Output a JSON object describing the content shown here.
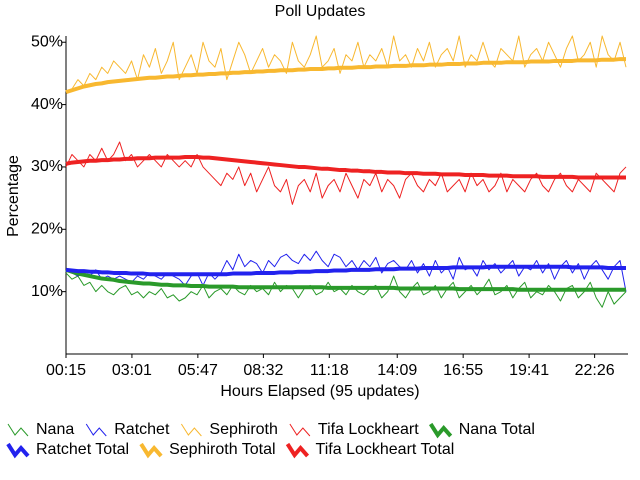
{
  "chart_data": {
    "type": "line",
    "title": "Poll Updates",
    "xlabel": "Hours Elapsed (95 updates)",
    "ylabel": "Percentage",
    "x": [
      "00:15",
      "00:30",
      "00:45",
      "01:00",
      "01:15",
      "01:30",
      "01:45",
      "02:00",
      "02:15",
      "02:30",
      "02:45",
      "03:00",
      "03:15",
      "03:30",
      "03:45",
      "04:00",
      "04:15",
      "04:30",
      "04:45",
      "05:00",
      "05:15",
      "05:30",
      "05:45",
      "06:00",
      "06:15",
      "06:30",
      "06:45",
      "07:00",
      "07:15",
      "07:30",
      "07:45",
      "08:00",
      "08:15",
      "08:30",
      "08:45",
      "09:00",
      "09:15",
      "09:30",
      "09:45",
      "10:00",
      "10:15",
      "10:30",
      "10:45",
      "11:00",
      "11:15",
      "11:30",
      "11:45",
      "12:00",
      "12:15",
      "12:30",
      "12:45",
      "13:00",
      "13:15",
      "13:30",
      "13:45",
      "14:00",
      "14:15",
      "14:30",
      "14:45",
      "15:00",
      "15:15",
      "15:30",
      "15:45",
      "16:00",
      "16:15",
      "16:30",
      "16:45",
      "17:00",
      "17:15",
      "17:30",
      "17:45",
      "18:00",
      "18:15",
      "18:30",
      "18:45",
      "19:00",
      "19:15",
      "19:30",
      "19:45",
      "20:00",
      "20:15",
      "20:30",
      "20:45",
      "21:00",
      "21:15",
      "21:30",
      "21:45",
      "22:00",
      "22:15",
      "22:30",
      "22:45",
      "23:00",
      "23:15",
      "23:30",
      "23:45"
    ],
    "xlim": [
      "00:15",
      "23:45"
    ],
    "xticks": [
      "00:15",
      "03:01",
      "05:47",
      "08:32",
      "11:18",
      "14:09",
      "16:55",
      "19:41",
      "22:26"
    ],
    "ylim": [
      0,
      51
    ],
    "yticks": [
      {
        "value": 10,
        "label": "10%"
      },
      {
        "value": 20,
        "label": "20%"
      },
      {
        "value": 30,
        "label": "30%"
      },
      {
        "value": 40,
        "label": "40%"
      },
      {
        "value": 50,
        "label": "50%"
      }
    ],
    "series": [
      {
        "name": "Nana",
        "color": "#2a9a2a",
        "linewidth": 1,
        "values": [
          13,
          12,
          12.5,
          11,
          11.5,
          10,
          11,
          10,
          9.5,
          10.5,
          11,
          9.5,
          10,
          9,
          10,
          9.5,
          10.5,
          9,
          9.5,
          8.5,
          9,
          10,
          9.5,
          11,
          9,
          10,
          10.5,
          9.5,
          11,
          10,
          9.5,
          11,
          10,
          10.5,
          9.5,
          11.5,
          10,
          11,
          10.5,
          9,
          10.5,
          11,
          9.5,
          10,
          11.5,
          10,
          10.5,
          9.5,
          11,
          10,
          9.5,
          10.5,
          11,
          9,
          10,
          12.5,
          10,
          9,
          10.5,
          11.5,
          9.5,
          10,
          11,
          9,
          10.5,
          11.5,
          9,
          10,
          11,
          9.5,
          10.5,
          12,
          9.5,
          10,
          11,
          9,
          10.5,
          11.5,
          9,
          10,
          9.5,
          11,
          10,
          8.5,
          10.5,
          11,
          9,
          10,
          11.5,
          9,
          7.5,
          10,
          8,
          9,
          10
        ]
      },
      {
        "name": "Ratchet",
        "color": "#2222ee",
        "linewidth": 1,
        "values": [
          13.5,
          13,
          12.5,
          13,
          12.5,
          13.5,
          12,
          12.5,
          12,
          12.5,
          12,
          11.5,
          12.5,
          12,
          13,
          12.5,
          12,
          13,
          12.5,
          12,
          11,
          12.5,
          13,
          11,
          13,
          12,
          13,
          15,
          13.5,
          16,
          14,
          15,
          14.5,
          13,
          15,
          14,
          15.5,
          16,
          15,
          14.5,
          16,
          15,
          16.5,
          15,
          14,
          16,
          15.5,
          14,
          15,
          13.5,
          15,
          14,
          15.5,
          13,
          14.5,
          15,
          14,
          13.5,
          15,
          13,
          14.5,
          12.5,
          15,
          13,
          14,
          12,
          15.5,
          13.5,
          14,
          12.5,
          15,
          13.5,
          14.5,
          13,
          14,
          15,
          12.5,
          14,
          13.5,
          15,
          13,
          14.5,
          12,
          14,
          15,
          13,
          14.5,
          12,
          14,
          15,
          13.5,
          12,
          14,
          15,
          10
        ]
      },
      {
        "name": "Sephiroth",
        "color": "#f8b830",
        "linewidth": 1,
        "values": [
          42,
          42.5,
          44,
          43,
          45,
          44,
          46,
          45,
          47,
          46,
          45,
          47,
          44,
          48,
          46,
          49,
          45,
          47,
          50,
          44,
          46,
          48,
          45,
          50,
          47,
          46,
          49,
          44,
          47,
          50,
          48,
          45,
          47,
          49,
          46,
          48,
          47,
          45,
          50,
          47,
          46,
          48,
          51,
          46,
          47,
          49,
          45,
          48,
          47,
          50,
          46,
          48,
          47,
          49,
          46,
          51,
          47,
          48,
          46,
          49,
          47,
          50,
          46,
          48,
          49,
          47,
          51,
          46,
          48,
          47,
          50,
          47,
          46,
          49,
          48,
          47,
          51,
          46,
          48,
          49,
          47,
          50,
          48,
          46,
          49,
          51,
          47,
          48,
          50,
          46,
          51,
          48,
          47,
          50,
          46
        ]
      },
      {
        "name": "Tifa Lockheart",
        "color": "#ee2222",
        "linewidth": 1,
        "values": [
          30,
          32,
          31,
          30,
          32,
          31,
          33,
          31,
          32,
          34,
          31,
          32,
          30,
          31,
          32,
          31,
          30,
          32,
          31,
          30,
          31,
          30,
          32,
          30,
          29,
          28,
          27,
          29,
          28,
          30,
          27,
          29,
          26,
          28,
          30,
          27,
          26,
          28,
          24,
          27,
          28,
          26,
          29,
          25,
          27,
          28,
          26,
          29,
          27,
          25,
          28,
          27,
          29,
          26,
          28,
          27,
          25,
          28,
          29,
          27,
          26,
          28,
          27,
          29,
          26,
          27,
          28,
          26,
          29,
          27,
          28,
          26,
          27,
          29,
          26,
          28,
          27,
          26,
          28,
          29,
          27,
          26,
          28,
          29,
          27,
          26,
          28,
          27,
          26,
          29,
          28,
          27,
          26,
          29,
          30
        ]
      },
      {
        "name": "Nana Total",
        "color": "#2a9a2a",
        "linewidth": 4,
        "values": [
          13.5,
          13.2,
          12.9,
          12.7,
          12.5,
          12.3,
          12.1,
          12,
          11.9,
          11.7,
          11.6,
          11.5,
          11.4,
          11.3,
          11.3,
          11.2,
          11.1,
          11.1,
          11,
          11,
          11,
          10.9,
          10.9,
          10.9,
          10.8,
          10.8,
          10.8,
          10.8,
          10.8,
          10.7,
          10.7,
          10.7,
          10.7,
          10.7,
          10.7,
          10.7,
          10.7,
          10.7,
          10.7,
          10.7,
          10.7,
          10.7,
          10.7,
          10.7,
          10.6,
          10.6,
          10.6,
          10.6,
          10.6,
          10.6,
          10.6,
          10.6,
          10.6,
          10.6,
          10.6,
          10.6,
          10.5,
          10.5,
          10.5,
          10.5,
          10.5,
          10.5,
          10.5,
          10.5,
          10.5,
          10.5,
          10.4,
          10.4,
          10.4,
          10.4,
          10.4,
          10.4,
          10.4,
          10.4,
          10.4,
          10.4,
          10.3,
          10.3,
          10.3,
          10.3,
          10.3,
          10.3,
          10.3,
          10.3,
          10.3,
          10.3,
          10.3,
          10.3,
          10.3,
          10.3,
          10.3,
          10.3,
          10.3,
          10.3,
          10.3
        ]
      },
      {
        "name": "Ratchet Total",
        "color": "#2222ee",
        "linewidth": 4,
        "values": [
          13.5,
          13.4,
          13.3,
          13.3,
          13.2,
          13.2,
          13.1,
          13.1,
          13,
          13,
          13,
          12.9,
          12.9,
          12.9,
          12.8,
          12.8,
          12.8,
          12.8,
          12.8,
          12.8,
          12.8,
          12.8,
          12.8,
          12.8,
          12.8,
          12.8,
          12.8,
          12.8,
          12.9,
          12.9,
          12.9,
          12.9,
          13,
          13,
          13,
          13,
          13.1,
          13.1,
          13.1,
          13.2,
          13.2,
          13.2,
          13.3,
          13.3,
          13.3,
          13.4,
          13.4,
          13.4,
          13.5,
          13.5,
          13.5,
          13.5,
          13.6,
          13.6,
          13.6,
          13.6,
          13.7,
          13.7,
          13.7,
          13.7,
          13.8,
          13.8,
          13.8,
          13.8,
          13.8,
          13.9,
          13.9,
          13.9,
          13.9,
          13.9,
          13.9,
          14,
          14,
          14,
          14,
          14,
          14,
          14,
          14,
          14,
          14,
          14,
          14,
          14,
          14,
          13.9,
          13.9,
          13.9,
          13.9,
          13.9,
          13.9,
          13.8,
          13.8,
          13.8,
          13.8
        ]
      },
      {
        "name": "Sephiroth Total",
        "color": "#f8b830",
        "linewidth": 4,
        "values": [
          42,
          42.3,
          42.6,
          42.9,
          43.1,
          43.3,
          43.4,
          43.6,
          43.7,
          43.8,
          43.9,
          44,
          44.1,
          44.2,
          44.3,
          44.3,
          44.4,
          44.5,
          44.5,
          44.6,
          44.7,
          44.7,
          44.8,
          44.8,
          44.9,
          44.9,
          45,
          45,
          45.1,
          45.1,
          45.2,
          45.2,
          45.3,
          45.3,
          45.4,
          45.4,
          45.5,
          45.5,
          45.5,
          45.6,
          45.6,
          45.7,
          45.7,
          45.7,
          45.8,
          45.8,
          45.9,
          45.9,
          45.9,
          46,
          46,
          46,
          46.1,
          46.1,
          46.1,
          46.2,
          46.2,
          46.2,
          46.3,
          46.3,
          46.3,
          46.4,
          46.4,
          46.4,
          46.5,
          46.5,
          46.5,
          46.6,
          46.6,
          46.6,
          46.7,
          46.7,
          46.7,
          46.7,
          46.8,
          46.8,
          46.8,
          46.8,
          46.9,
          46.9,
          46.9,
          46.9,
          47,
          47,
          47,
          47,
          47.1,
          47.1,
          47.1,
          47.1,
          47.2,
          47.2,
          47.2,
          47.3,
          47.3
        ]
      },
      {
        "name": "Tifa Lockheart Total",
        "color": "#ee2222",
        "linewidth": 4,
        "values": [
          30.5,
          30.7,
          30.8,
          30.9,
          31,
          31,
          31.1,
          31.1,
          31.2,
          31.2,
          31.3,
          31.3,
          31.4,
          31.4,
          31.4,
          31.5,
          31.5,
          31.5,
          31.5,
          31.5,
          31.6,
          31.6,
          31.6,
          31.5,
          31.5,
          31.4,
          31.3,
          31.2,
          31.1,
          31,
          30.9,
          30.8,
          30.7,
          30.6,
          30.5,
          30.4,
          30.3,
          30.2,
          30.1,
          30,
          30,
          29.9,
          29.8,
          29.7,
          29.7,
          29.6,
          29.5,
          29.5,
          29.4,
          29.4,
          29.3,
          29.3,
          29.2,
          29.2,
          29.1,
          29.1,
          29.1,
          29,
          29,
          29,
          28.9,
          28.9,
          28.9,
          28.8,
          28.8,
          28.8,
          28.8,
          28.7,
          28.7,
          28.7,
          28.7,
          28.6,
          28.6,
          28.6,
          28.6,
          28.5,
          28.5,
          28.5,
          28.5,
          28.5,
          28.4,
          28.4,
          28.4,
          28.4,
          28.4,
          28.4,
          28.3,
          28.3,
          28.3,
          28.3,
          28.3,
          28.3,
          28.3,
          28.3,
          28.3
        ]
      }
    ]
  }
}
